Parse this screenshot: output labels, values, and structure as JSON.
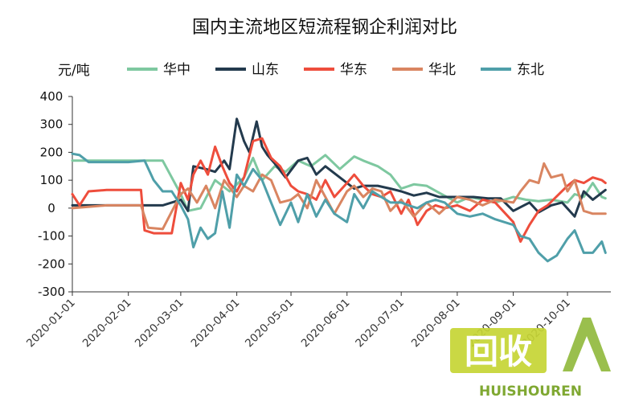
{
  "chart_data": {
    "type": "line",
    "title": "国内主流地区短流程钢企利润对比",
    "ylabel": "元/吨",
    "xlabel": "",
    "ylim": [
      -300,
      400
    ],
    "y_ticks": [
      "400",
      "300",
      "200",
      "100",
      "0",
      "-100",
      "-200",
      "-300"
    ],
    "x_tick_labels": [
      "2020-01-01",
      "2020-02-01",
      "2020-03-01",
      "2020-04-01",
      "2020-05-01",
      "2020-06-01",
      "2020-07-01",
      "2020-08-01",
      "2020-09-01",
      "2020-10-01"
    ],
    "grid": false,
    "legend_position": "top",
    "series": [
      {
        "name": "华中",
        "color": "#7ec8a0",
        "x": [
          "2020-01-01",
          "2020-01-28",
          "2020-02-05",
          "2020-02-20",
          "2020-03-01",
          "2020-03-05",
          "2020-03-12",
          "2020-03-20",
          "2020-03-28",
          "2020-04-05",
          "2020-04-10",
          "2020-04-15",
          "2020-04-22",
          "2020-04-28",
          "2020-05-05",
          "2020-05-12",
          "2020-05-20",
          "2020-05-28",
          "2020-06-05",
          "2020-06-10",
          "2020-06-18",
          "2020-06-25",
          "2020-07-01",
          "2020-07-08",
          "2020-07-15",
          "2020-07-22",
          "2020-08-01",
          "2020-08-08",
          "2020-08-15",
          "2020-08-22",
          "2020-09-01",
          "2020-09-08",
          "2020-09-15",
          "2020-09-22",
          "2020-10-01",
          "2020-10-05",
          "2020-10-10",
          "2020-10-15",
          "2020-10-20",
          "2020-10-22"
        ],
        "y": [
          170,
          170,
          170,
          170,
          50,
          -10,
          0,
          100,
          60,
          110,
          180,
          100,
          150,
          130,
          170,
          150,
          190,
          140,
          185,
          170,
          150,
          120,
          70,
          85,
          80,
          55,
          20,
          40,
          30,
          20,
          40,
          30,
          25,
          30,
          20,
          50,
          40,
          90,
          40,
          35
        ]
      },
      {
        "name": "山东",
        "color": "#233a4d",
        "x": [
          "2020-01-01",
          "2020-01-20",
          "2020-02-01",
          "2020-02-20",
          "2020-03-01",
          "2020-03-05",
          "2020-03-08",
          "2020-03-15",
          "2020-03-20",
          "2020-03-25",
          "2020-03-28",
          "2020-04-01",
          "2020-04-05",
          "2020-04-08",
          "2020-04-12",
          "2020-04-15",
          "2020-04-18",
          "2020-04-22",
          "2020-04-28",
          "2020-05-05",
          "2020-05-10",
          "2020-05-15",
          "2020-05-20",
          "2020-05-28",
          "2020-06-05",
          "2020-06-10",
          "2020-06-18",
          "2020-06-25",
          "2020-07-01",
          "2020-07-08",
          "2020-07-15",
          "2020-07-22",
          "2020-08-01",
          "2020-08-10",
          "2020-08-18",
          "2020-08-25",
          "2020-09-01",
          "2020-09-10",
          "2020-09-15",
          "2020-09-22",
          "2020-09-28",
          "2020-10-05",
          "2020-10-10",
          "2020-10-15",
          "2020-10-22"
        ],
        "y": [
          10,
          10,
          10,
          10,
          30,
          -10,
          150,
          140,
          130,
          170,
          140,
          320,
          240,
          200,
          310,
          220,
          190,
          160,
          110,
          170,
          180,
          120,
          150,
          110,
          70,
          80,
          80,
          70,
          60,
          45,
          55,
          40,
          40,
          40,
          35,
          35,
          -10,
          20,
          -15,
          10,
          20,
          -30,
          60,
          30,
          65
        ]
      },
      {
        "name": "华东",
        "color": "#ee4d3c",
        "x": [
          "2020-01-01",
          "2020-01-05",
          "2020-01-10",
          "2020-01-20",
          "2020-02-01",
          "2020-02-08",
          "2020-02-10",
          "2020-02-15",
          "2020-02-20",
          "2020-02-25",
          "2020-03-01",
          "2020-03-05",
          "2020-03-08",
          "2020-03-12",
          "2020-03-16",
          "2020-03-20",
          "2020-03-24",
          "2020-03-28",
          "2020-04-01",
          "2020-04-05",
          "2020-04-10",
          "2020-04-15",
          "2020-04-20",
          "2020-04-25",
          "2020-05-01",
          "2020-05-05",
          "2020-05-10",
          "2020-05-15",
          "2020-05-20",
          "2020-05-25",
          "2020-06-01",
          "2020-06-05",
          "2020-06-10",
          "2020-06-15",
          "2020-06-20",
          "2020-06-25",
          "2020-07-01",
          "2020-07-05",
          "2020-07-10",
          "2020-07-15",
          "2020-07-20",
          "2020-07-25",
          "2020-08-01",
          "2020-08-08",
          "2020-08-15",
          "2020-08-22",
          "2020-09-01",
          "2020-09-05",
          "2020-09-10",
          "2020-09-15",
          "2020-09-20",
          "2020-10-01",
          "2020-10-05",
          "2020-10-10",
          "2020-10-15",
          "2020-10-20",
          "2020-10-22"
        ],
        "y": [
          50,
          10,
          60,
          65,
          65,
          65,
          -80,
          -90,
          -90,
          -90,
          90,
          30,
          120,
          170,
          120,
          220,
          150,
          90,
          60,
          110,
          240,
          250,
          180,
          150,
          80,
          60,
          50,
          30,
          100,
          40,
          90,
          120,
          80,
          50,
          40,
          60,
          -20,
          30,
          -60,
          -10,
          10,
          0,
          10,
          -10,
          30,
          20,
          -50,
          -120,
          -60,
          -10,
          10,
          80,
          100,
          90,
          110,
          100,
          90
        ]
      },
      {
        "name": "华北",
        "color": "#d98561",
        "x": [
          "2020-01-01",
          "2020-01-20",
          "2020-02-01",
          "2020-02-08",
          "2020-02-12",
          "2020-02-20",
          "2020-03-01",
          "2020-03-05",
          "2020-03-10",
          "2020-03-15",
          "2020-03-20",
          "2020-03-25",
          "2020-04-01",
          "2020-04-05",
          "2020-04-10",
          "2020-04-15",
          "2020-04-20",
          "2020-04-25",
          "2020-05-01",
          "2020-05-05",
          "2020-05-10",
          "2020-05-15",
          "2020-05-20",
          "2020-05-25",
          "2020-06-01",
          "2020-06-05",
          "2020-06-10",
          "2020-06-15",
          "2020-06-20",
          "2020-06-25",
          "2020-07-01",
          "2020-07-08",
          "2020-07-15",
          "2020-07-22",
          "2020-08-01",
          "2020-08-08",
          "2020-08-15",
          "2020-08-22",
          "2020-09-01",
          "2020-09-05",
          "2020-09-10",
          "2020-09-15",
          "2020-09-18",
          "2020-09-22",
          "2020-09-28",
          "2020-10-01",
          "2020-10-05",
          "2020-10-10",
          "2020-10-15",
          "2020-10-22"
        ],
        "y": [
          0,
          10,
          10,
          10,
          -70,
          -75,
          50,
          70,
          20,
          80,
          0,
          100,
          40,
          80,
          60,
          120,
          100,
          20,
          30,
          50,
          0,
          100,
          40,
          -20,
          60,
          80,
          40,
          70,
          60,
          -10,
          30,
          -30,
          20,
          -20,
          40,
          30,
          10,
          30,
          20,
          60,
          100,
          90,
          160,
          110,
          120,
          60,
          100,
          -10,
          -20,
          -20
        ]
      },
      {
        "name": "东北",
        "color": "#4f9fa9",
        "x": [
          "2020-01-01",
          "2020-01-05",
          "2020-01-10",
          "2020-01-20",
          "2020-02-01",
          "2020-02-10",
          "2020-02-15",
          "2020-02-20",
          "2020-02-25",
          "2020-03-01",
          "2020-03-05",
          "2020-03-08",
          "2020-03-12",
          "2020-03-16",
          "2020-03-20",
          "2020-03-24",
          "2020-03-28",
          "2020-04-01",
          "2020-04-05",
          "2020-04-10",
          "2020-04-15",
          "2020-04-20",
          "2020-04-25",
          "2020-05-01",
          "2020-05-05",
          "2020-05-10",
          "2020-05-15",
          "2020-05-20",
          "2020-05-25",
          "2020-06-01",
          "2020-06-05",
          "2020-06-10",
          "2020-06-15",
          "2020-06-20",
          "2020-06-25",
          "2020-07-01",
          "2020-07-05",
          "2020-07-10",
          "2020-07-15",
          "2020-07-20",
          "2020-07-25",
          "2020-08-01",
          "2020-08-08",
          "2020-08-15",
          "2020-08-22",
          "2020-09-01",
          "2020-09-05",
          "2020-09-10",
          "2020-09-15",
          "2020-09-20",
          "2020-09-25",
          "2020-10-01",
          "2020-10-05",
          "2020-10-10",
          "2020-10-15",
          "2020-10-20",
          "2020-10-22"
        ],
        "y": [
          195,
          190,
          165,
          165,
          165,
          170,
          100,
          60,
          60,
          10,
          -40,
          -140,
          -70,
          -110,
          -90,
          60,
          -70,
          120,
          80,
          140,
          100,
          20,
          -60,
          20,
          -50,
          50,
          -30,
          30,
          -20,
          -50,
          50,
          0,
          60,
          40,
          20,
          20,
          10,
          0,
          20,
          30,
          20,
          -20,
          -30,
          -20,
          -40,
          -60,
          -100,
          -110,
          -160,
          -190,
          -170,
          -110,
          -80,
          -160,
          -160,
          -120,
          -160
        ]
      }
    ]
  },
  "watermark": {
    "badge_text": "回收",
    "brand_text": "HUISHOUREN"
  }
}
